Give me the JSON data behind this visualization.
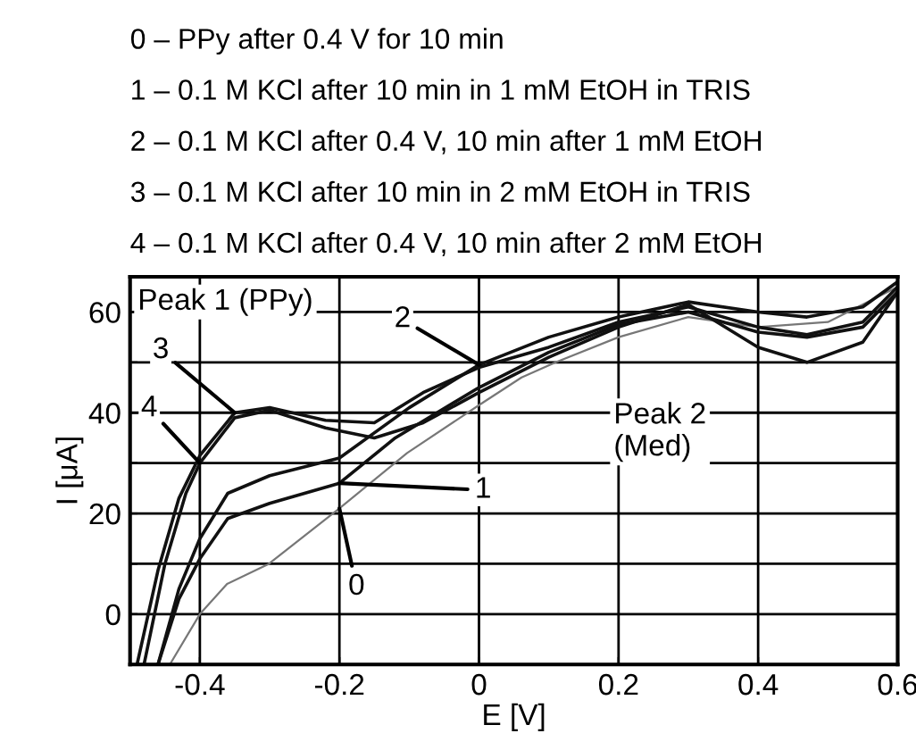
{
  "chart_data": {
    "type": "line",
    "xlabel": "E [V]",
    "ylabel": "I [μA]",
    "xlim": [
      -0.5,
      0.6
    ],
    "ylim": [
      -10,
      67
    ],
    "xticks": [
      -0.4,
      -0.2,
      0,
      0.2,
      0.4,
      0.6
    ],
    "yticks": [
      {
        "value": -10,
        "label": null
      },
      0,
      {
        "value": 10,
        "label": null
      },
      20,
      {
        "value": 30,
        "label": null
      },
      40,
      {
        "value": 50,
        "label": null
      },
      60
    ],
    "grid": true,
    "marker": "none",
    "line_style": "solid",
    "annotations": [
      "0 – PPy after 0.4 V for 10 min",
      "1 – 0.1 M KCl after 10 min in 1 mM EtOH in TRIS",
      "2 – 0.1 M KCl after 0.4 V, 10 min after 1 mM EtOH",
      "3 – 0.1 M KCl after 10 min in 2 mM EtOH in TRIS",
      "4 – 0.1 M KCl after 0.4 V, 10 min after 2 mM EtOH",
      "Peak 1 (PPy)",
      "Peak 2\n(Med)",
      {
        "text": "0",
        "x": -0.2,
        "y": 21
      },
      {
        "text": "1",
        "x": -0.2,
        "y": 26
      },
      {
        "text": "2",
        "x": 0,
        "y": 49.5
      },
      {
        "text": "3",
        "x": -0.35,
        "y": 40
      },
      {
        "text": "4",
        "x": -0.4,
        "y": 30
      }
    ],
    "series": [
      {
        "color": "#777777",
        "x": [
          -0.443,
          -0.4,
          -0.361,
          -0.301,
          -0.2,
          -0.103,
          0,
          0.061,
          0.11,
          0.2,
          0.3,
          0.4,
          0.5,
          0.6
        ],
        "values": [
          -10,
          0,
          6,
          10,
          21,
          32,
          41.5,
          47,
          50,
          55,
          59,
          57,
          58,
          65
        ]
      },
      {
        "color": "#111111",
        "x": [
          -0.46,
          -0.43,
          -0.4,
          -0.36,
          -0.3,
          -0.2,
          -0.12,
          0,
          0.1,
          0.2,
          0.3,
          0.4,
          0.47,
          0.55,
          0.6
        ],
        "values": [
          -10,
          3,
          11,
          19,
          22,
          26,
          35,
          45,
          52,
          57.5,
          60,
          56,
          55,
          57,
          64
        ]
      },
      {
        "color": "#111111",
        "x": [
          -0.46,
          -0.43,
          -0.4,
          -0.36,
          -0.3,
          -0.2,
          -0.1,
          0,
          0.1,
          0.2,
          0.3,
          0.4,
          0.47,
          0.55,
          0.6
        ],
        "values": [
          -10,
          5,
          15,
          24,
          27.5,
          31,
          41,
          49.5,
          55,
          59,
          62,
          60,
          59,
          61,
          66
        ]
      },
      {
        "color": "#111111",
        "x": [
          -0.49,
          -0.46,
          -0.43,
          -0.4,
          -0.35,
          -0.3,
          -0.22,
          -0.15,
          -0.08,
          0,
          0.1,
          0.2,
          0.3,
          0.4,
          0.47,
          0.55,
          0.6
        ],
        "values": [
          -10,
          8.7,
          23,
          31.5,
          40,
          41,
          38.5,
          38,
          44,
          49,
          53,
          58,
          61,
          57,
          55.5,
          58,
          65
        ]
      },
      {
        "color": "#111111",
        "x": [
          -0.48,
          -0.45,
          -0.42,
          -0.4,
          -0.35,
          -0.3,
          -0.22,
          -0.15,
          -0.08,
          0,
          0.1,
          0.2,
          0.3,
          0.4,
          0.47,
          0.55,
          0.6
        ],
        "values": [
          -10,
          10,
          24,
          30,
          39,
          40.5,
          37,
          35,
          38,
          44,
          51,
          57,
          61.5,
          53,
          50,
          54,
          64
        ]
      }
    ]
  }
}
